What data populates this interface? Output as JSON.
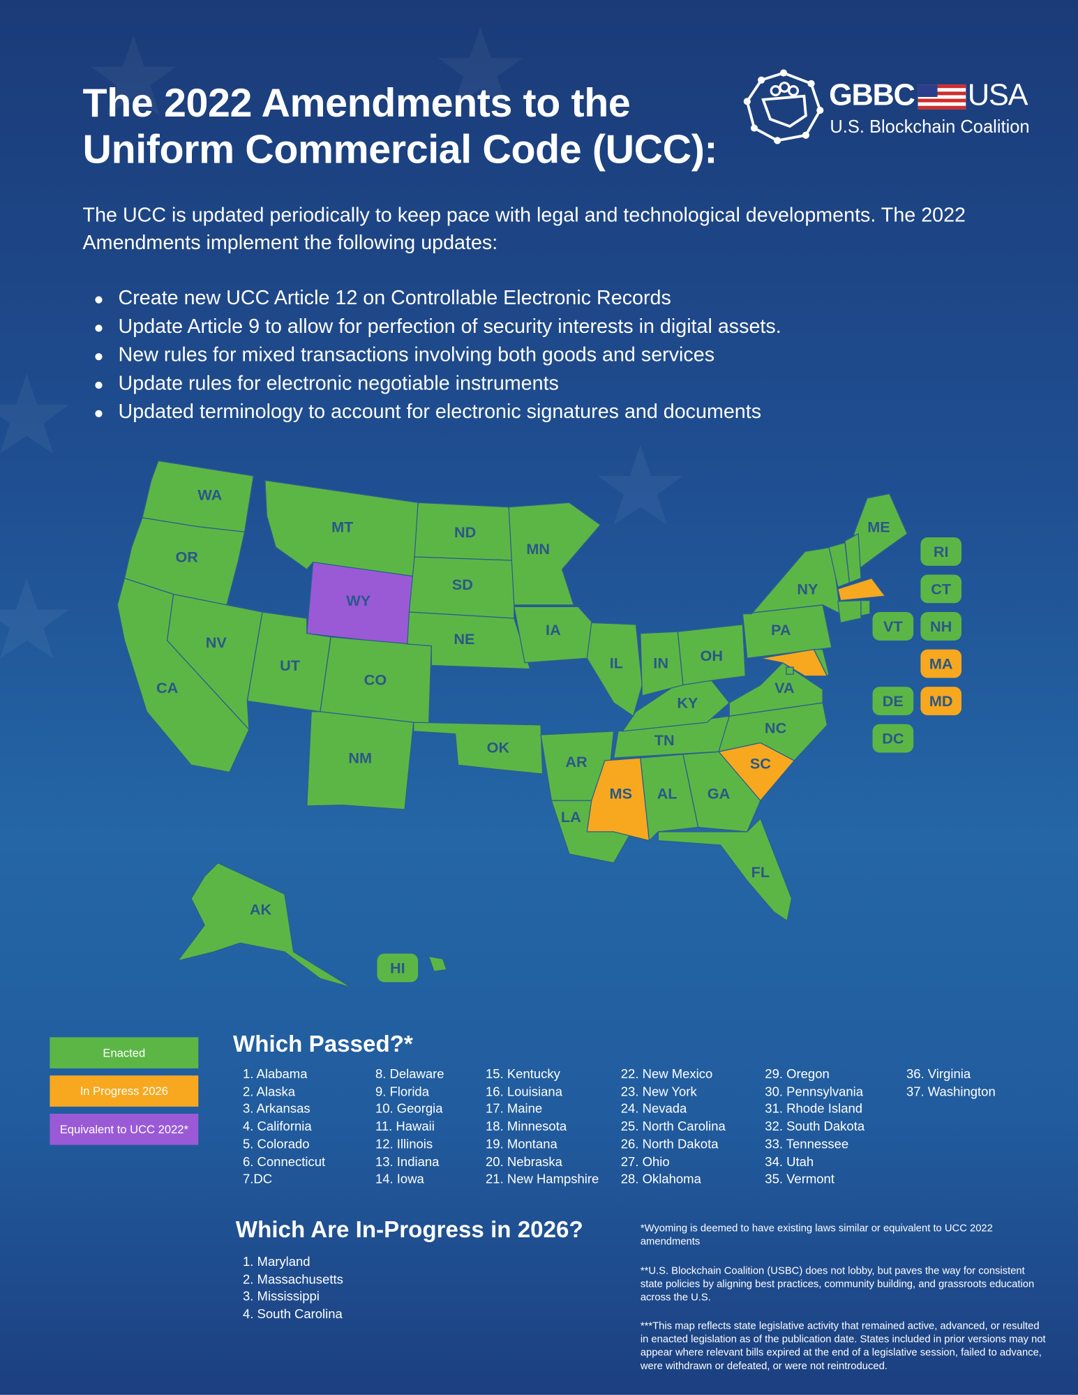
{
  "header": {
    "title_line1": "The 2022 Amendments to the",
    "title_line2": "Uniform Commercial Code (UCC):",
    "logo_name": "GBBC",
    "logo_country": "USA",
    "logo_subtitle": "U.S. Blockchain Coalition"
  },
  "intro": "The UCC is updated periodically to keep pace with legal and technological developments. The 2022 Amendments implement the following updates:",
  "bullets": [
    "Create new UCC Article 12 on Controllable Electronic Records",
    "Update Article 9 to allow for perfection of security interests in digital assets.",
    "New rules for mixed transactions involving both goods and services",
    "Update rules for electronic negotiable instruments",
    "Updated terminology to account for electronic signatures and documents"
  ],
  "legend": [
    {
      "label": "Enacted",
      "color": "#5cb646"
    },
    {
      "label": "In Progress 2026",
      "color": "#f7a81e"
    },
    {
      "label": "Equivalent to UCC 2022*",
      "color": "#9a5ad6"
    }
  ],
  "map": {
    "states": [
      {
        "label": "WA",
        "status": 0
      },
      {
        "label": "OR",
        "status": 0
      },
      {
        "label": "CA",
        "status": 0
      },
      {
        "label": "NV",
        "status": 0
      },
      {
        "label": "UT",
        "status": 0
      },
      {
        "label": "MT",
        "status": 0
      },
      {
        "label": "WY",
        "status": 2
      },
      {
        "label": "CO",
        "status": 0
      },
      {
        "label": "NM",
        "status": 0
      },
      {
        "label": "ND",
        "status": 0
      },
      {
        "label": "SD",
        "status": 0
      },
      {
        "label": "NE",
        "status": 0
      },
      {
        "label": "OK",
        "status": 0
      },
      {
        "label": "MN",
        "status": 0
      },
      {
        "label": "IA",
        "status": 0
      },
      {
        "label": "AR",
        "status": 0
      },
      {
        "label": "LA",
        "status": 0
      },
      {
        "label": "MS",
        "status": 1
      },
      {
        "label": "AL",
        "status": 0
      },
      {
        "label": "GA",
        "status": 0
      },
      {
        "label": "FL",
        "status": 0
      },
      {
        "label": "SC",
        "status": 1
      },
      {
        "label": "NC",
        "status": 0
      },
      {
        "label": "TN",
        "status": 0
      },
      {
        "label": "KY",
        "status": 0
      },
      {
        "label": "VA",
        "status": 0
      },
      {
        "label": "IL",
        "status": 0
      },
      {
        "label": "IN",
        "status": 0
      },
      {
        "label": "OH",
        "status": 0
      },
      {
        "label": "PA",
        "status": 0
      },
      {
        "label": "NY",
        "status": 0
      },
      {
        "label": "ME",
        "status": 0
      },
      {
        "label": "VT",
        "status": 0
      },
      {
        "label": "NH",
        "status": 0
      },
      {
        "label": "MA",
        "status": 1
      },
      {
        "label": "CT",
        "status": 0
      },
      {
        "label": "RI",
        "status": 0
      },
      {
        "label": "MD",
        "status": 1
      },
      {
        "label": "DE",
        "status": 0
      },
      {
        "label": "DC",
        "status": 0
      },
      {
        "label": "AK",
        "status": 0
      },
      {
        "label": "HI",
        "status": 0
      }
    ]
  },
  "passed": {
    "title": "Which Passed?*",
    "items": [
      "1. Alabama",
      "2. Alaska",
      "3. Arkansas",
      "4. California",
      "5. Colorado",
      "6. Connecticut",
      "7.DC",
      "8. Delaware",
      "9. Florida",
      "10. Georgia",
      "11. Hawaii",
      "12. Illinois",
      "13. Indiana",
      "14. Iowa",
      "15. Kentucky",
      "16. Louisiana",
      "17. Maine",
      "18. Minnesota",
      "19. Montana",
      "20. Nebraska",
      "21. New Hampshire",
      "22. New Mexico",
      "23. New York",
      "24. Nevada",
      "25. North Carolina",
      "26. North Dakota",
      "27. Ohio",
      "28. Oklahoma",
      "29. Oregon",
      "30. Pennsylvania",
      "31. Rhode Island",
      "32. South Dakota",
      "33. Tennessee",
      "34. Utah",
      "35. Vermont",
      "36. Virginia",
      "37. Washington"
    ]
  },
  "in_progress": {
    "title": "Which Are In-Progress in 2026?",
    "items": [
      "1. Maryland",
      "2. Massachusetts",
      "3. Mississippi",
      "4. South Carolina"
    ]
  },
  "footnotes": [
    "*Wyoming is deemed to have existing laws similar or equivalent to UCC 2022 amendments",
    "**U.S. Blockchain Coalition (USBC) does not lobby, but paves the way for consistent state policies by aligning best practices, community building, and grassroots education across the U.S.",
    "***This map reflects state legislative activity that remained active, advanced, or resulted in enacted legislation as of the publication date. States included in prior versions may not appear where relevant bills expired at the end of a legislative session, failed to advance, were withdrawn or defeated, or were not reintroduced."
  ]
}
